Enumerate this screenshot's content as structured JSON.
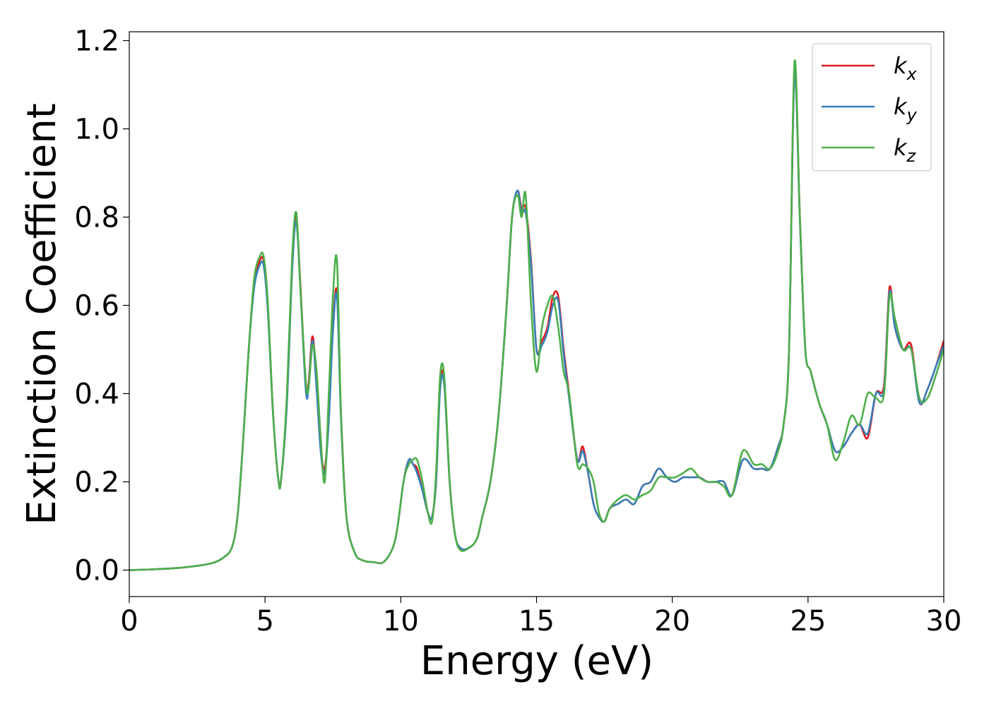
{
  "chart_data": {
    "type": "line",
    "xlabel": "Energy (eV)",
    "ylabel": "Extinction Coefficient",
    "xlim": [
      0,
      30
    ],
    "ylim": [
      -0.06,
      1.22
    ],
    "xticks": [
      0,
      5,
      10,
      15,
      20,
      25,
      30
    ],
    "yticks": [
      0.0,
      0.2,
      0.4,
      0.6,
      0.8,
      1.0,
      1.2
    ],
    "grid": false,
    "legend_position": "top-right",
    "series": [
      {
        "name": "k",
        "subscript": "x",
        "color": "#e41a1c",
        "x": [
          0,
          1,
          2,
          3,
          3.5,
          3.8,
          4.0,
          4.2,
          4.4,
          4.6,
          4.8,
          4.95,
          5.1,
          5.3,
          5.5,
          5.6,
          5.8,
          6.0,
          6.15,
          6.3,
          6.5,
          6.6,
          6.75,
          6.9,
          7.05,
          7.2,
          7.35,
          7.5,
          7.65,
          7.8,
          8.0,
          8.3,
          8.6,
          9.0,
          9.4,
          9.8,
          10.1,
          10.3,
          10.45,
          10.6,
          10.8,
          11.0,
          11.15,
          11.3,
          11.45,
          11.6,
          11.8,
          12.0,
          12.2,
          12.5,
          12.8,
          13.0,
          13.3,
          13.6,
          13.9,
          14.1,
          14.3,
          14.45,
          14.6,
          14.8,
          15.0,
          15.2,
          15.4,
          15.6,
          15.8,
          16.0,
          16.2,
          16.5,
          16.7,
          16.9,
          17.1,
          17.3,
          17.5,
          17.7,
          18.0,
          18.3,
          18.6,
          18.9,
          19.2,
          19.5,
          19.8,
          20.1,
          20.4,
          20.7,
          21.0,
          21.3,
          21.6,
          21.9,
          22.2,
          22.6,
          23.0,
          23.3,
          23.6,
          23.9,
          24.1,
          24.3,
          24.5,
          24.7,
          24.9,
          25.1,
          25.4,
          25.7,
          26.0,
          26.3,
          26.6,
          26.9,
          27.2,
          27.5,
          27.8,
          28.0,
          28.2,
          28.5,
          28.8,
          29.1,
          29.4,
          29.7,
          30.0
        ],
        "values": [
          0.0,
          0.002,
          0.006,
          0.015,
          0.03,
          0.055,
          0.13,
          0.3,
          0.5,
          0.65,
          0.7,
          0.7,
          0.6,
          0.35,
          0.2,
          0.21,
          0.38,
          0.7,
          0.8,
          0.65,
          0.42,
          0.42,
          0.53,
          0.42,
          0.28,
          0.23,
          0.35,
          0.55,
          0.63,
          0.35,
          0.12,
          0.04,
          0.022,
          0.018,
          0.02,
          0.07,
          0.2,
          0.25,
          0.24,
          0.23,
          0.18,
          0.13,
          0.12,
          0.2,
          0.42,
          0.43,
          0.2,
          0.08,
          0.05,
          0.05,
          0.07,
          0.12,
          0.2,
          0.35,
          0.6,
          0.8,
          0.86,
          0.82,
          0.82,
          0.7,
          0.5,
          0.52,
          0.55,
          0.62,
          0.62,
          0.5,
          0.4,
          0.25,
          0.28,
          0.22,
          0.15,
          0.12,
          0.11,
          0.14,
          0.15,
          0.16,
          0.15,
          0.19,
          0.2,
          0.23,
          0.21,
          0.2,
          0.21,
          0.21,
          0.21,
          0.2,
          0.2,
          0.2,
          0.17,
          0.25,
          0.23,
          0.23,
          0.23,
          0.28,
          0.33,
          0.5,
          1.14,
          0.8,
          0.5,
          0.45,
          0.38,
          0.33,
          0.27,
          0.28,
          0.31,
          0.33,
          0.3,
          0.4,
          0.42,
          0.64,
          0.55,
          0.5,
          0.51,
          0.38,
          0.41,
          0.46,
          0.52
        ]
      },
      {
        "name": "k",
        "subscript": "y",
        "color": "#377eb8",
        "x": [
          0,
          1,
          2,
          3,
          3.5,
          3.8,
          4.0,
          4.2,
          4.4,
          4.6,
          4.8,
          4.95,
          5.1,
          5.3,
          5.5,
          5.6,
          5.8,
          6.0,
          6.15,
          6.3,
          6.5,
          6.6,
          6.75,
          6.9,
          7.05,
          7.2,
          7.35,
          7.5,
          7.65,
          7.8,
          8.0,
          8.3,
          8.6,
          9.0,
          9.4,
          9.8,
          10.1,
          10.3,
          10.45,
          10.6,
          10.8,
          11.0,
          11.15,
          11.3,
          11.45,
          11.6,
          11.8,
          12.0,
          12.2,
          12.5,
          12.8,
          13.0,
          13.3,
          13.6,
          13.9,
          14.1,
          14.3,
          14.45,
          14.6,
          14.8,
          15.0,
          15.2,
          15.4,
          15.6,
          15.8,
          16.0,
          16.2,
          16.5,
          16.7,
          16.9,
          17.1,
          17.3,
          17.5,
          17.7,
          18.0,
          18.3,
          18.6,
          18.9,
          19.2,
          19.5,
          19.8,
          20.1,
          20.4,
          20.7,
          21.0,
          21.3,
          21.6,
          21.9,
          22.2,
          22.6,
          23.0,
          23.3,
          23.6,
          23.9,
          24.1,
          24.3,
          24.5,
          24.7,
          24.9,
          25.1,
          25.4,
          25.7,
          26.0,
          26.3,
          26.6,
          26.9,
          27.2,
          27.5,
          27.8,
          28.0,
          28.2,
          28.5,
          28.8,
          29.1,
          29.4,
          29.7,
          30.0
        ],
        "values": [
          0.0,
          0.002,
          0.006,
          0.015,
          0.03,
          0.055,
          0.13,
          0.3,
          0.5,
          0.64,
          0.69,
          0.69,
          0.59,
          0.35,
          0.2,
          0.21,
          0.37,
          0.68,
          0.79,
          0.64,
          0.41,
          0.41,
          0.52,
          0.41,
          0.27,
          0.22,
          0.34,
          0.54,
          0.62,
          0.34,
          0.12,
          0.04,
          0.022,
          0.018,
          0.02,
          0.07,
          0.2,
          0.25,
          0.24,
          0.22,
          0.18,
          0.13,
          0.12,
          0.2,
          0.41,
          0.42,
          0.2,
          0.08,
          0.05,
          0.05,
          0.07,
          0.12,
          0.2,
          0.35,
          0.6,
          0.8,
          0.86,
          0.81,
          0.81,
          0.69,
          0.5,
          0.51,
          0.54,
          0.6,
          0.61,
          0.49,
          0.39,
          0.25,
          0.27,
          0.22,
          0.15,
          0.12,
          0.11,
          0.14,
          0.15,
          0.16,
          0.15,
          0.19,
          0.2,
          0.23,
          0.21,
          0.2,
          0.21,
          0.21,
          0.21,
          0.2,
          0.2,
          0.2,
          0.17,
          0.25,
          0.23,
          0.23,
          0.23,
          0.28,
          0.33,
          0.5,
          1.12,
          0.79,
          0.5,
          0.45,
          0.38,
          0.33,
          0.27,
          0.28,
          0.31,
          0.33,
          0.31,
          0.4,
          0.41,
          0.63,
          0.55,
          0.5,
          0.5,
          0.38,
          0.41,
          0.46,
          0.51
        ]
      },
      {
        "name": "k",
        "subscript": "z",
        "color": "#4daf4a",
        "x": [
          0,
          1,
          2,
          3,
          3.5,
          3.8,
          4.0,
          4.2,
          4.4,
          4.6,
          4.8,
          4.95,
          5.1,
          5.3,
          5.5,
          5.6,
          5.8,
          6.0,
          6.15,
          6.3,
          6.5,
          6.6,
          6.75,
          6.9,
          7.05,
          7.2,
          7.35,
          7.5,
          7.65,
          7.8,
          8.0,
          8.3,
          8.6,
          9.0,
          9.4,
          9.8,
          10.1,
          10.3,
          10.45,
          10.6,
          10.8,
          11.0,
          11.15,
          11.3,
          11.45,
          11.6,
          11.8,
          12.0,
          12.2,
          12.5,
          12.8,
          13.0,
          13.3,
          13.6,
          13.9,
          14.1,
          14.3,
          14.45,
          14.6,
          14.8,
          15.0,
          15.2,
          15.4,
          15.6,
          15.8,
          16.0,
          16.2,
          16.5,
          16.7,
          16.9,
          17.1,
          17.3,
          17.5,
          17.7,
          18.0,
          18.3,
          18.6,
          18.9,
          19.2,
          19.5,
          19.8,
          20.1,
          20.4,
          20.7,
          21.0,
          21.3,
          21.6,
          21.9,
          22.2,
          22.6,
          23.0,
          23.3,
          23.6,
          23.9,
          24.1,
          24.3,
          24.5,
          24.7,
          24.9,
          25.1,
          25.4,
          25.7,
          26.0,
          26.3,
          26.6,
          26.9,
          27.2,
          27.5,
          27.8,
          28.0,
          28.2,
          28.5,
          28.8,
          29.1,
          29.4,
          29.7,
          30.0
        ],
        "values": [
          0.0,
          0.002,
          0.006,
          0.015,
          0.03,
          0.055,
          0.13,
          0.3,
          0.5,
          0.66,
          0.71,
          0.71,
          0.61,
          0.35,
          0.2,
          0.21,
          0.39,
          0.71,
          0.81,
          0.64,
          0.43,
          0.41,
          0.51,
          0.45,
          0.3,
          0.2,
          0.4,
          0.62,
          0.7,
          0.35,
          0.12,
          0.04,
          0.022,
          0.018,
          0.02,
          0.07,
          0.2,
          0.24,
          0.25,
          0.25,
          0.2,
          0.13,
          0.11,
          0.22,
          0.44,
          0.44,
          0.2,
          0.08,
          0.045,
          0.05,
          0.07,
          0.12,
          0.2,
          0.35,
          0.6,
          0.8,
          0.85,
          0.8,
          0.85,
          0.6,
          0.45,
          0.55,
          0.6,
          0.62,
          0.55,
          0.45,
          0.4,
          0.24,
          0.24,
          0.23,
          0.2,
          0.13,
          0.11,
          0.14,
          0.16,
          0.17,
          0.16,
          0.17,
          0.18,
          0.21,
          0.21,
          0.21,
          0.22,
          0.23,
          0.21,
          0.2,
          0.2,
          0.19,
          0.17,
          0.27,
          0.24,
          0.24,
          0.23,
          0.27,
          0.33,
          0.5,
          1.15,
          0.8,
          0.5,
          0.45,
          0.38,
          0.33,
          0.25,
          0.29,
          0.35,
          0.33,
          0.4,
          0.39,
          0.4,
          0.62,
          0.57,
          0.5,
          0.5,
          0.39,
          0.39,
          0.44,
          0.5
        ]
      }
    ]
  }
}
